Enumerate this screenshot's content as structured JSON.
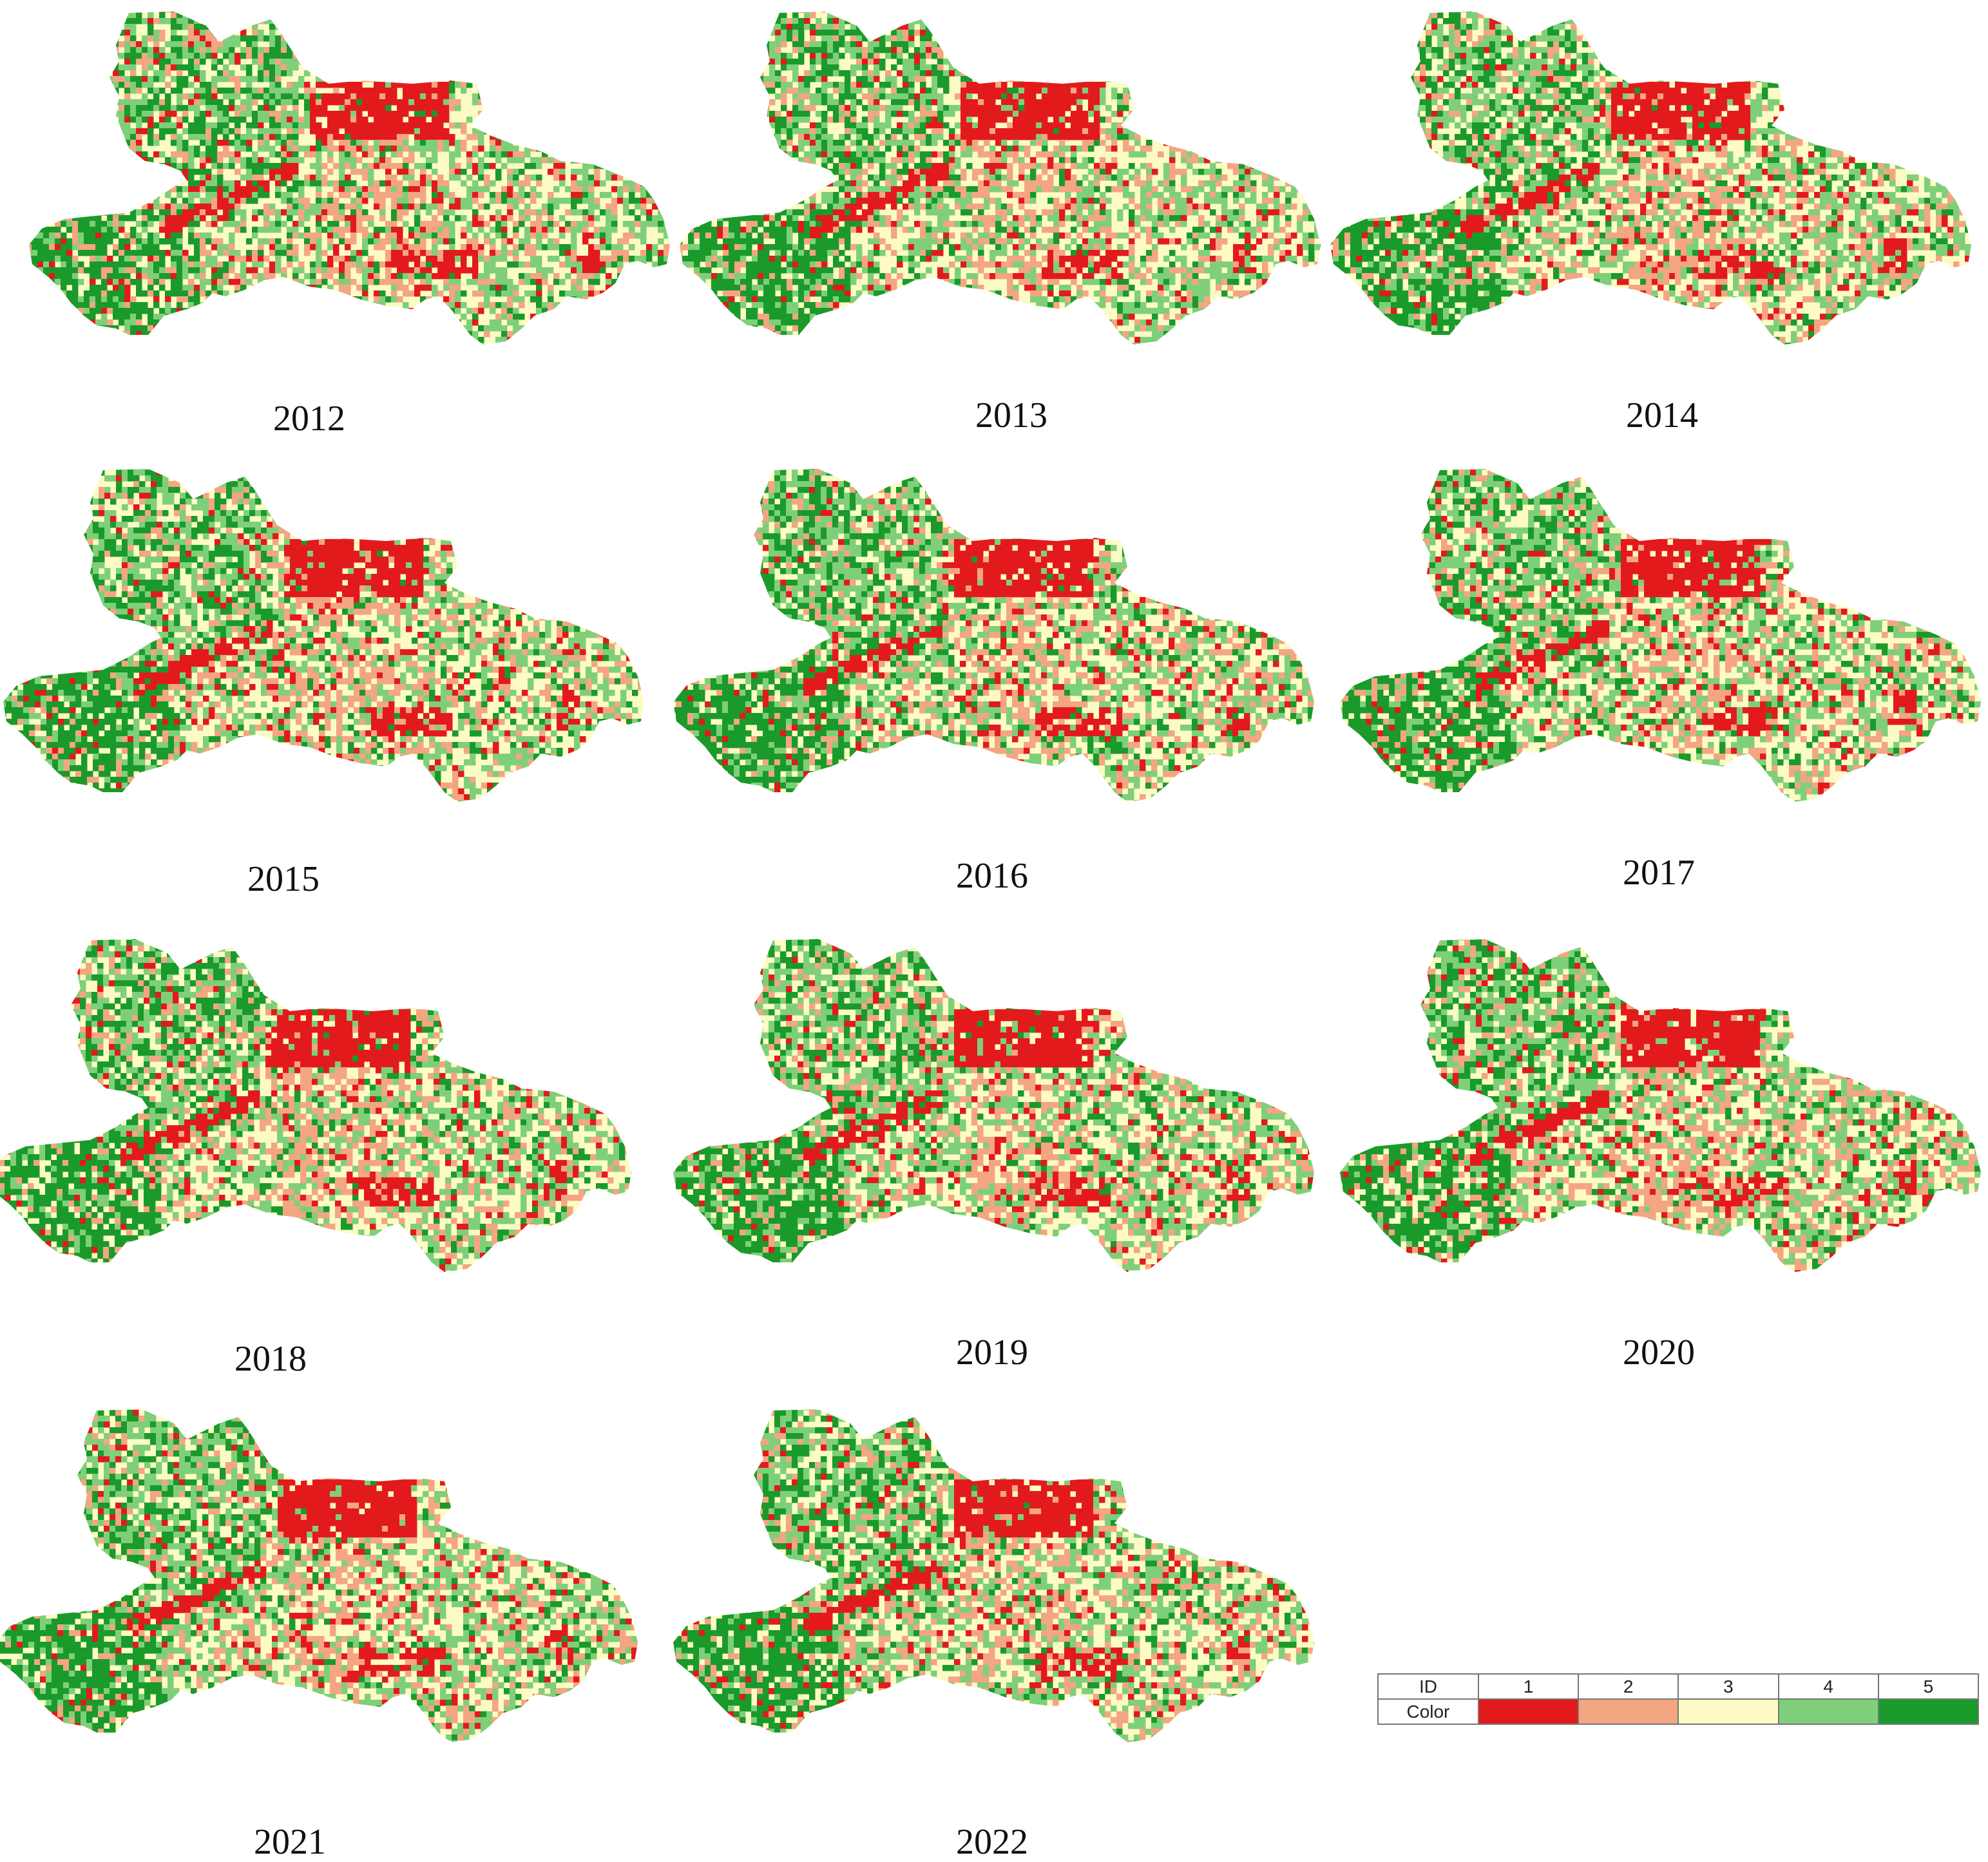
{
  "figure": {
    "panels": [
      {
        "year": "2012"
      },
      {
        "year": "2013"
      },
      {
        "year": "2014"
      },
      {
        "year": "2015"
      },
      {
        "year": "2016"
      },
      {
        "year": "2017"
      },
      {
        "year": "2018"
      },
      {
        "year": "2019"
      },
      {
        "year": "2020"
      },
      {
        "year": "2021"
      },
      {
        "year": "2022"
      }
    ],
    "legend": {
      "id_header": "ID",
      "color_header": "Color",
      "classes": [
        {
          "id": "1",
          "color": "#e31a1c"
        },
        {
          "id": "2",
          "color": "#f4a582"
        },
        {
          "id": "3",
          "color": "#fdfbc5"
        },
        {
          "id": "4",
          "color": "#7fcf7a"
        },
        {
          "id": "5",
          "color": "#1a9a2a"
        }
      ]
    }
  }
}
